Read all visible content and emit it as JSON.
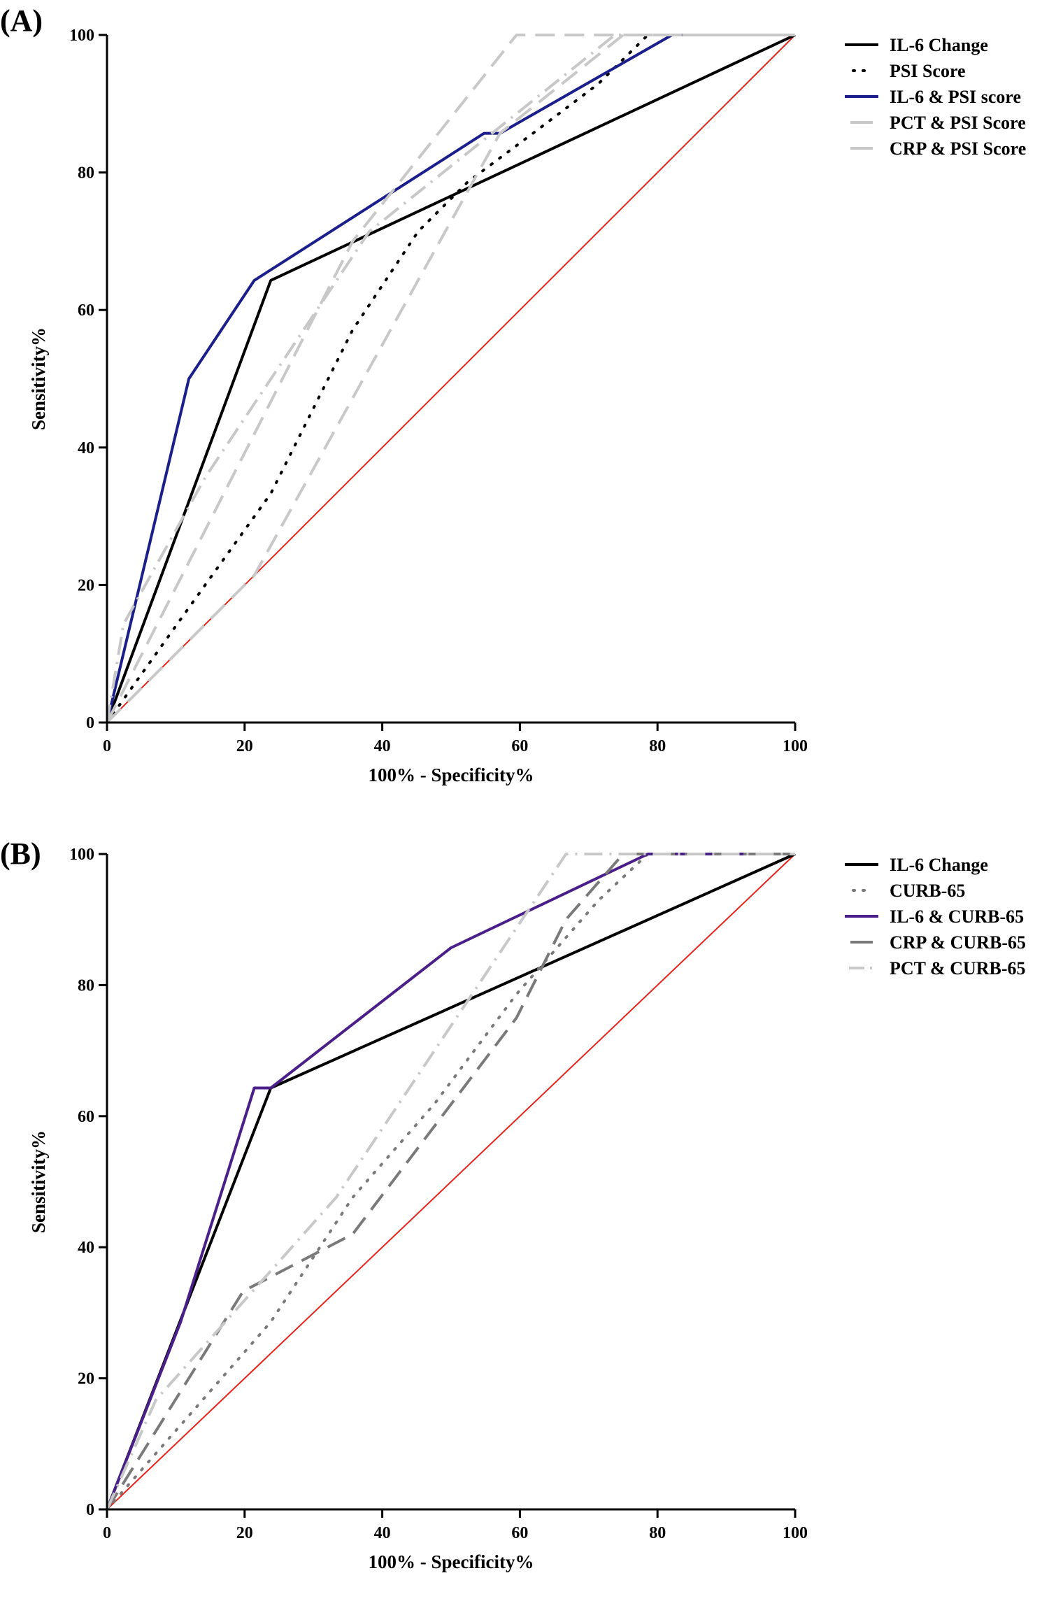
{
  "chart_data": [
    {
      "panel_label": "(A)",
      "type": "line",
      "xlabel": "100% - Specificity%",
      "ylabel": "Sensitivity%",
      "xlim": [
        0,
        100
      ],
      "ylim": [
        0,
        100
      ],
      "xticks": [
        "0",
        "20",
        "40",
        "60",
        "80",
        "100"
      ],
      "yticks": [
        "0",
        "20",
        "40",
        "60",
        "80",
        "100"
      ],
      "grid": false,
      "legend_position": "right",
      "reference_line": {
        "x": [
          0,
          100
        ],
        "y": [
          0,
          100
        ],
        "color": "#e8241c"
      },
      "series": [
        {
          "name": "IL-6 Change",
          "color": "#000000",
          "style": "solid",
          "x": [
            0,
            23.8,
            100
          ],
          "y": [
            0,
            64.3,
            100
          ]
        },
        {
          "name": "PSI Score",
          "color": "#000000",
          "style": "dotted",
          "x": [
            0,
            11.9,
            23.8,
            35.7,
            45.2,
            52.4,
            61.9,
            71.4,
            78.6
          ],
          "y": [
            0,
            16.7,
            33.3,
            57.1,
            71.4,
            78.6,
            85.7,
            92.9,
            100
          ]
        },
        {
          "name": "IL-6 & PSI score",
          "color": "#1a1f8c",
          "style": "solid",
          "x": [
            0,
            11.9,
            21.4,
            54.8,
            57.1,
            82.1,
            100
          ],
          "y": [
            0,
            50,
            64.3,
            85.7,
            85.7,
            100,
            100
          ]
        },
        {
          "name": "PCT & PSI Score",
          "color": "#c8c8c8",
          "style": "dashed",
          "x": [
            0,
            35.7,
            59.5,
            100
          ],
          "y": [
            0,
            70,
            100,
            100
          ]
        },
        {
          "name": "CRP & PSI Score",
          "color": "#c8c8c8",
          "style": "dashed",
          "x": [
            0,
            21.4,
            45.2,
            57.1,
            75,
            100
          ],
          "y": [
            0,
            21.4,
            64.3,
            85.7,
            100,
            100
          ]
        },
        {
          "name": "",
          "color": "#c8c8c8",
          "style": "dashdot",
          "x": [
            0,
            2.4,
            14.3,
            38.1,
            73.8,
            100
          ],
          "y": [
            0,
            14.3,
            35.7,
            71.4,
            100,
            100
          ]
        }
      ]
    },
    {
      "panel_label": "(B)",
      "type": "line",
      "xlabel": "100% - Specificity%",
      "ylabel": "Sensitivity%",
      "xlim": [
        0,
        100
      ],
      "ylim": [
        0,
        100
      ],
      "xticks": [
        "0",
        "20",
        "40",
        "60",
        "80",
        "100"
      ],
      "yticks": [
        "0",
        "20",
        "40",
        "60",
        "80",
        "100"
      ],
      "grid": false,
      "legend_position": "right",
      "reference_line": {
        "x": [
          0,
          100
        ],
        "y": [
          0,
          100
        ],
        "color": "#e8241c"
      },
      "series": [
        {
          "name": "IL-6 Change",
          "color": "#000000",
          "style": "solid",
          "x": [
            0,
            23.8,
            100
          ],
          "y": [
            0,
            64.3,
            100
          ]
        },
        {
          "name": "CURB-65",
          "color": "#7a7a7a",
          "style": "dotted",
          "x": [
            0,
            11.9,
            23.8,
            35.7,
            47.6,
            59.5,
            71.4,
            78.6
          ],
          "y": [
            0,
            14.3,
            28.6,
            47.6,
            61.9,
            78.6,
            92.9,
            100
          ]
        },
        {
          "name": "IL-6 & CURB-65",
          "color": "#4a1f8a",
          "style": "solid",
          "x": [
            0,
            10.7,
            21.4,
            23.8,
            50,
            78.6,
            100
          ],
          "y": [
            0,
            28.6,
            64.3,
            64.3,
            85.7,
            100,
            100
          ]
        },
        {
          "name": "CRP & CURB-65",
          "color": "#7a7a7a",
          "style": "dashed",
          "x": [
            0,
            19.8,
            35.7,
            59.5,
            66.7,
            75,
            100
          ],
          "y": [
            0,
            33.3,
            42,
            75,
            90,
            100,
            100
          ]
        },
        {
          "name": "PCT & CURB-65",
          "color": "#c8c8c8",
          "style": "dashdot",
          "x": [
            0,
            7.1,
            33.3,
            66.7,
            100
          ],
          "y": [
            0,
            16.7,
            47.6,
            100,
            100
          ]
        }
      ]
    }
  ]
}
